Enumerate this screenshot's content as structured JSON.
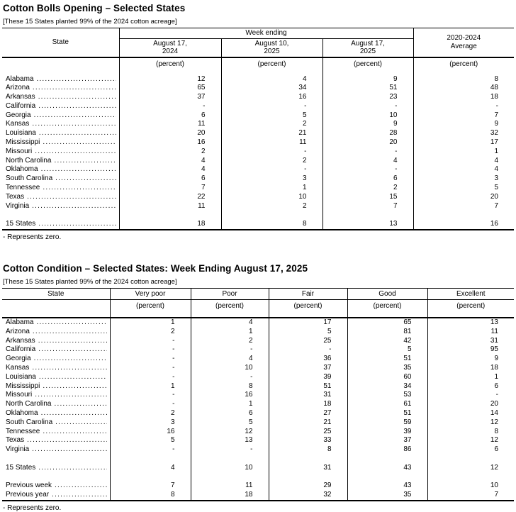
{
  "table1": {
    "title": "Cotton Bolls Opening – Selected States",
    "note": "[These 15 States planted 99% of the 2024 cotton acreage]",
    "header": {
      "state": "State",
      "week_ending": "Week ending",
      "col1_l1": "August 17,",
      "col1_l2": "2024",
      "col2_l1": "August 10,",
      "col2_l2": "2025",
      "col3_l1": "August 17,",
      "col3_l2": "2025",
      "avg_l1": "2020-2024",
      "avg_l2": "Average"
    },
    "unit": "(percent)",
    "rows": [
      {
        "label": "Alabama",
        "values": [
          "12",
          "4",
          "9",
          "8"
        ]
      },
      {
        "label": "Arizona",
        "values": [
          "65",
          "34",
          "51",
          "48"
        ]
      },
      {
        "label": "Arkansas",
        "values": [
          "37",
          "16",
          "23",
          "18"
        ]
      },
      {
        "label": "California",
        "values": [
          "-",
          "-",
          "-",
          "-"
        ]
      },
      {
        "label": "Georgia",
        "values": [
          "6",
          "5",
          "10",
          "7"
        ]
      },
      {
        "label": "Kansas",
        "values": [
          "11",
          "2",
          "9",
          "9"
        ]
      },
      {
        "label": "Louisiana",
        "values": [
          "20",
          "21",
          "28",
          "32"
        ]
      },
      {
        "label": "Mississippi",
        "values": [
          "16",
          "11",
          "20",
          "17"
        ]
      },
      {
        "label": "Missouri",
        "values": [
          "2",
          "-",
          "-",
          "1"
        ]
      },
      {
        "label": "North Carolina",
        "values": [
          "4",
          "2",
          "4",
          "4"
        ]
      },
      {
        "label": "Oklahoma",
        "values": [
          "4",
          "-",
          "-",
          "4"
        ]
      },
      {
        "label": "South Carolina",
        "values": [
          "6",
          "3",
          "6",
          "3"
        ]
      },
      {
        "label": "Tennessee",
        "values": [
          "7",
          "1",
          "2",
          "5"
        ]
      },
      {
        "label": "Texas",
        "values": [
          "22",
          "10",
          "15",
          "20"
        ]
      },
      {
        "label": "Virginia",
        "values": [
          "11",
          "2",
          "7",
          "7"
        ]
      },
      {
        "spacer": true
      },
      {
        "label": "15 States",
        "values": [
          "18",
          "8",
          "13",
          "16"
        ]
      }
    ],
    "footnote": "- Represents zero."
  },
  "table2": {
    "title": "Cotton Condition – Selected States: Week Ending August 17, 2025",
    "note": "[These 15 States planted 99% of the 2024 cotton acreage]",
    "header": {
      "state": "State",
      "cols": [
        "Very poor",
        "Poor",
        "Fair",
        "Good",
        "Excellent"
      ]
    },
    "unit": "(percent)",
    "rows": [
      {
        "label": "Alabama",
        "values": [
          "1",
          "4",
          "17",
          "65",
          "13"
        ]
      },
      {
        "label": "Arizona",
        "values": [
          "2",
          "1",
          "5",
          "81",
          "11"
        ]
      },
      {
        "label": "Arkansas",
        "values": [
          "-",
          "2",
          "25",
          "42",
          "31"
        ]
      },
      {
        "label": "California",
        "values": [
          "-",
          "-",
          "-",
          "5",
          "95"
        ]
      },
      {
        "label": "Georgia",
        "values": [
          "-",
          "4",
          "36",
          "51",
          "9"
        ]
      },
      {
        "label": "Kansas",
        "values": [
          "-",
          "10",
          "37",
          "35",
          "18"
        ]
      },
      {
        "label": "Louisiana",
        "values": [
          "-",
          "-",
          "39",
          "60",
          "1"
        ]
      },
      {
        "label": "Mississippi",
        "values": [
          "1",
          "8",
          "51",
          "34",
          "6"
        ]
      },
      {
        "label": "Missouri",
        "values": [
          "-",
          "16",
          "31",
          "53",
          "-"
        ]
      },
      {
        "label": "North Carolina",
        "values": [
          "-",
          "1",
          "18",
          "61",
          "20"
        ]
      },
      {
        "label": "Oklahoma",
        "values": [
          "2",
          "6",
          "27",
          "51",
          "14"
        ]
      },
      {
        "label": "South Carolina",
        "values": [
          "3",
          "5",
          "21",
          "59",
          "12"
        ]
      },
      {
        "label": "Tennessee",
        "values": [
          "16",
          "12",
          "25",
          "39",
          "8"
        ]
      },
      {
        "label": "Texas",
        "values": [
          "5",
          "13",
          "33",
          "37",
          "12"
        ]
      },
      {
        "label": "Virginia",
        "values": [
          "-",
          "-",
          "8",
          "86",
          "6"
        ]
      },
      {
        "spacer": true
      },
      {
        "label": "15 States",
        "values": [
          "4",
          "10",
          "31",
          "43",
          "12"
        ]
      },
      {
        "spacer": true
      },
      {
        "label": "Previous week",
        "values": [
          "7",
          "11",
          "29",
          "43",
          "10"
        ]
      },
      {
        "label": "Previous year",
        "values": [
          "8",
          "18",
          "32",
          "35",
          "7"
        ]
      }
    ],
    "footnote": "- Represents zero."
  }
}
